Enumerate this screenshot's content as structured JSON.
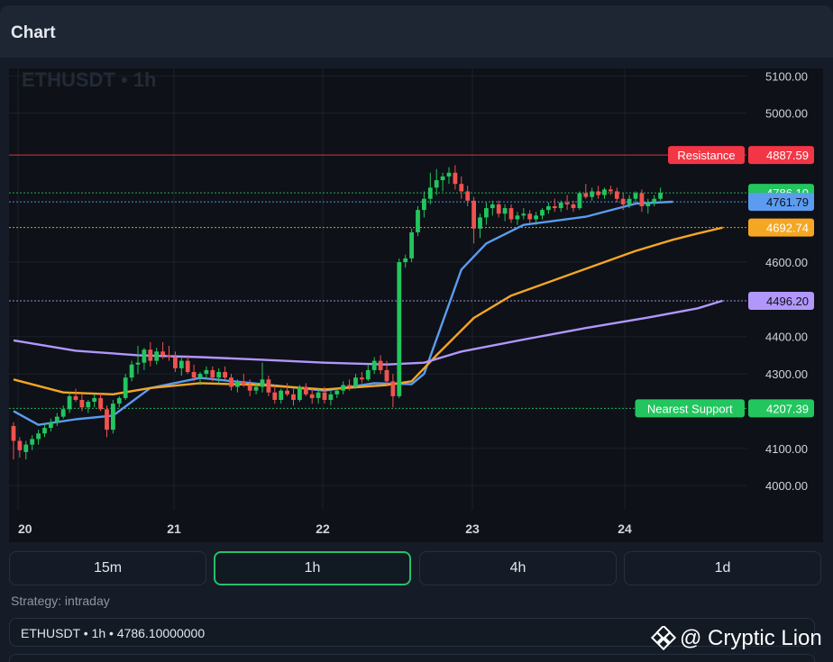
{
  "header": {
    "title": "Chart"
  },
  "chart_data": {
    "type": "candlestick",
    "symbol_label": "ETHUSDT • 1h",
    "y_ticks": [
      5100,
      5000,
      4600,
      4400,
      4300,
      4100,
      4000
    ],
    "x_ticks": [
      "20",
      "21",
      "22",
      "23",
      "24"
    ],
    "ylim": [
      3935,
      5120
    ],
    "price_lines": [
      {
        "name": "Resistance",
        "value": 4887.59,
        "label": "4887.59",
        "color": "#f23645",
        "style": "solid"
      },
      {
        "name": "",
        "value": 4786.1,
        "label": "4786.10",
        "color": "#22c55e",
        "style": "dotted"
      },
      {
        "name": "",
        "value": 4761.79,
        "label": "4761.79",
        "color": "#5b9cf0",
        "style": "dotted"
      },
      {
        "name": "",
        "value": 4692.74,
        "label": "4692.74",
        "color": "#f5a623",
        "style": "dotted"
      },
      {
        "name": "",
        "value": 4496.2,
        "label": "4496.20",
        "color": "#b197fc",
        "style": "dotted"
      },
      {
        "name": "Nearest Support",
        "value": 4207.39,
        "label": "4207.39",
        "color": "#22c55e",
        "style": "dotted"
      }
    ],
    "candles": [
      [
        4160,
        4170,
        4070,
        4120
      ],
      [
        4120,
        4130,
        4075,
        4095
      ],
      [
        4090,
        4120,
        4070,
        4110
      ],
      [
        4110,
        4135,
        4095,
        4125
      ],
      [
        4125,
        4150,
        4110,
        4140
      ],
      [
        4140,
        4165,
        4130,
        4155
      ],
      [
        4155,
        4180,
        4145,
        4170
      ],
      [
        4170,
        4195,
        4160,
        4185
      ],
      [
        4185,
        4215,
        4180,
        4205
      ],
      [
        4205,
        4250,
        4195,
        4240
      ],
      [
        4240,
        4260,
        4225,
        4230
      ],
      [
        4230,
        4245,
        4200,
        4210
      ],
      [
        4210,
        4230,
        4195,
        4225
      ],
      [
        4225,
        4245,
        4210,
        4235
      ],
      [
        4235,
        4250,
        4200,
        4205
      ],
      [
        4205,
        4215,
        4130,
        4150
      ],
      [
        4150,
        4230,
        4140,
        4220
      ],
      [
        4220,
        4240,
        4210,
        4235
      ],
      [
        4235,
        4300,
        4230,
        4290
      ],
      [
        4290,
        4335,
        4280,
        4325
      ],
      [
        4325,
        4375,
        4300,
        4330
      ],
      [
        4330,
        4370,
        4310,
        4365
      ],
      [
        4365,
        4385,
        4320,
        4335
      ],
      [
        4335,
        4370,
        4325,
        4360
      ],
      [
        4360,
        4385,
        4340,
        4350
      ],
      [
        4350,
        4375,
        4335,
        4345
      ],
      [
        4345,
        4360,
        4305,
        4315
      ],
      [
        4315,
        4345,
        4295,
        4335
      ],
      [
        4335,
        4350,
        4300,
        4305
      ],
      [
        4305,
        4325,
        4280,
        4290
      ],
      [
        4290,
        4305,
        4270,
        4300
      ],
      [
        4300,
        4320,
        4285,
        4310
      ],
      [
        4310,
        4320,
        4280,
        4290
      ],
      [
        4290,
        4315,
        4275,
        4305
      ],
      [
        4305,
        4320,
        4285,
        4290
      ],
      [
        4290,
        4300,
        4255,
        4265
      ],
      [
        4265,
        4285,
        4250,
        4280
      ],
      [
        4280,
        4300,
        4265,
        4270
      ],
      [
        4270,
        4285,
        4240,
        4255
      ],
      [
        4255,
        4275,
        4245,
        4265
      ],
      [
        4265,
        4330,
        4250,
        4285
      ],
      [
        4285,
        4295,
        4240,
        4250
      ],
      [
        4250,
        4270,
        4220,
        4230
      ],
      [
        4230,
        4260,
        4220,
        4255
      ],
      [
        4255,
        4275,
        4240,
        4245
      ],
      [
        4245,
        4260,
        4215,
        4230
      ],
      [
        4230,
        4270,
        4225,
        4265
      ],
      [
        4265,
        4275,
        4240,
        4245
      ],
      [
        4245,
        4260,
        4220,
        4235
      ],
      [
        4235,
        4260,
        4220,
        4250
      ],
      [
        4250,
        4265,
        4220,
        4230
      ],
      [
        4230,
        4255,
        4215,
        4245
      ],
      [
        4245,
        4260,
        4235,
        4255
      ],
      [
        4255,
        4280,
        4245,
        4270
      ],
      [
        4270,
        4285,
        4255,
        4265
      ],
      [
        4265,
        4300,
        4260,
        4290
      ],
      [
        4290,
        4305,
        4275,
        4285
      ],
      [
        4285,
        4325,
        4280,
        4310
      ],
      [
        4310,
        4345,
        4300,
        4335
      ],
      [
        4335,
        4350,
        4300,
        4310
      ],
      [
        4310,
        4335,
        4270,
        4280
      ],
      [
        4280,
        4300,
        4210,
        4240
      ],
      [
        4240,
        4610,
        4235,
        4600
      ],
      [
        4600,
        4620,
        4585,
        4610
      ],
      [
        4610,
        4690,
        4600,
        4680
      ],
      [
        4680,
        4750,
        4670,
        4740
      ],
      [
        4740,
        4790,
        4720,
        4770
      ],
      [
        4770,
        4840,
        4755,
        4800
      ],
      [
        4800,
        4850,
        4780,
        4820
      ],
      [
        4820,
        4840,
        4790,
        4830
      ],
      [
        4830,
        4855,
        4810,
        4840
      ],
      [
        4840,
        4860,
        4795,
        4810
      ],
      [
        4810,
        4830,
        4770,
        4790
      ],
      [
        4790,
        4805,
        4750,
        4765
      ],
      [
        4765,
        4775,
        4650,
        4690
      ],
      [
        4690,
        4730,
        4665,
        4720
      ],
      [
        4720,
        4760,
        4700,
        4745
      ],
      [
        4745,
        4765,
        4725,
        4755
      ],
      [
        4755,
        4765,
        4720,
        4730
      ],
      [
        4730,
        4755,
        4710,
        4745
      ],
      [
        4745,
        4755,
        4705,
        4715
      ],
      [
        4715,
        4735,
        4700,
        4725
      ],
      [
        4725,
        4745,
        4715,
        4730
      ],
      [
        4730,
        4740,
        4705,
        4715
      ],
      [
        4715,
        4735,
        4700,
        4725
      ],
      [
        4725,
        4745,
        4715,
        4740
      ],
      [
        4740,
        4760,
        4730,
        4750
      ],
      [
        4750,
        4770,
        4735,
        4745
      ],
      [
        4745,
        4765,
        4735,
        4760
      ],
      [
        4760,
        4780,
        4740,
        4755
      ],
      [
        4755,
        4765,
        4735,
        4745
      ],
      [
        4745,
        4790,
        4740,
        4785
      ],
      [
        4785,
        4810,
        4770,
        4775
      ],
      [
        4775,
        4800,
        4765,
        4790
      ],
      [
        4790,
        4805,
        4770,
        4780
      ],
      [
        4780,
        4800,
        4770,
        4795
      ],
      [
        4795,
        4805,
        4780,
        4790
      ],
      [
        4790,
        4800,
        4760,
        4770
      ],
      [
        4770,
        4785,
        4740,
        4755
      ],
      [
        4755,
        4780,
        4745,
        4770
      ],
      [
        4770,
        4790,
        4760,
        4785
      ],
      [
        4785,
        4795,
        4735,
        4750
      ],
      [
        4750,
        4770,
        4730,
        4760
      ],
      [
        4760,
        4780,
        4750,
        4770
      ],
      [
        4770,
        4800,
        4765,
        4786.1
      ]
    ],
    "ma_series": [
      {
        "color": "#5b9cf0",
        "points": [
          [
            0,
            4200
          ],
          [
            4,
            4163
          ],
          [
            10,
            4178
          ],
          [
            16,
            4188
          ],
          [
            22,
            4262
          ],
          [
            30,
            4289
          ],
          [
            40,
            4272
          ],
          [
            50,
            4255
          ],
          [
            58,
            4275
          ],
          [
            64,
            4272
          ],
          [
            66,
            4300
          ],
          [
            72,
            4580
          ],
          [
            76,
            4650
          ],
          [
            82,
            4700
          ],
          [
            92,
            4722
          ],
          [
            100,
            4757
          ],
          [
            106,
            4762
          ]
        ]
      },
      {
        "color": "#f5a623",
        "points": [
          [
            0,
            4285
          ],
          [
            8,
            4250
          ],
          [
            16,
            4245
          ],
          [
            22,
            4262
          ],
          [
            30,
            4275
          ],
          [
            40,
            4270
          ],
          [
            50,
            4258
          ],
          [
            60,
            4270
          ],
          [
            64,
            4280
          ],
          [
            68,
            4350
          ],
          [
            74,
            4450
          ],
          [
            80,
            4510
          ],
          [
            90,
            4570
          ],
          [
            100,
            4630
          ],
          [
            106,
            4660
          ],
          [
            110,
            4677
          ],
          [
            114,
            4692.74
          ]
        ]
      },
      {
        "color": "#b197fc",
        "points": [
          [
            0,
            4390
          ],
          [
            10,
            4362
          ],
          [
            20,
            4350
          ],
          [
            30,
            4345
          ],
          [
            40,
            4338
          ],
          [
            50,
            4330
          ],
          [
            60,
            4325
          ],
          [
            66,
            4330
          ],
          [
            72,
            4360
          ],
          [
            82,
            4392
          ],
          [
            92,
            4423
          ],
          [
            102,
            4451
          ],
          [
            110,
            4476
          ],
          [
            114,
            4496.2
          ]
        ]
      }
    ]
  },
  "timeframes": [
    {
      "label": "15m",
      "active": false
    },
    {
      "label": "1h",
      "active": true
    },
    {
      "label": "4h",
      "active": false
    },
    {
      "label": "1d",
      "active": false
    }
  ],
  "strategy_label": "Strategy: intraday",
  "ticker_line": "ETHUSDT • 1h • 4786.10000000",
  "watermark": {
    "text": "@ Cryptic Lion"
  }
}
